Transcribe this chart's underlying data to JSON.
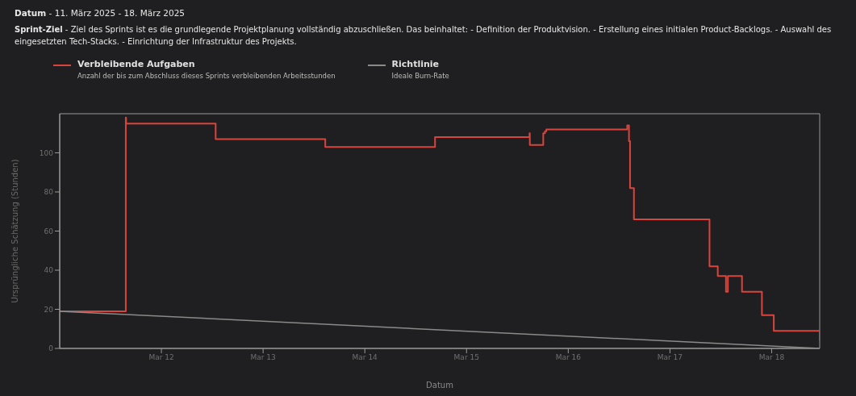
{
  "chart_data": {
    "type": "step",
    "title": "Datum - 11. März 2025 - 18. März 2025",
    "subtitle": "Sprint-Ziel - Ziel des Sprints ist es die grundlegende Projektplanung vollständig abzuschließen. Das beinhaltet: - Definition der Produktvision. - Erstellung eines initialen Product-Backlogs. - Auswahl des eingesetzten Tech-Stacks. - Einrichtung der Infrastruktur des Projekts.",
    "xlabel": "Datum",
    "ylabel": "Ursprüngliche Schätzung (Stunden)",
    "annotations": [
      "Anzahl der bis zum Abschluss dieses Sprints verbleibenden Arbeitsstunden",
      "Ideale Burn-Rate"
    ],
    "series": [
      {
        "name": "Verbleibende Aufgaben",
        "color": "#d9453d",
        "x": [
          "2025-03-11T00:00",
          "2025-03-11T15:36",
          "2025-03-11T15:40",
          "2025-03-12T12:48",
          "2025-03-13T14:40",
          "2025-03-14T16:34",
          "2025-03-15T14:52",
          "2025-03-15T14:56",
          "2025-03-15T18:06",
          "2025-03-15T18:30",
          "2025-03-15T18:50",
          "2025-03-16T13:55",
          "2025-03-16T14:20",
          "2025-03-16T14:35",
          "2025-03-16T15:30",
          "2025-03-17T09:20",
          "2025-03-17T11:17",
          "2025-03-17T13:13",
          "2025-03-17T13:40",
          "2025-03-17T17:00",
          "2025-03-17T21:42",
          "2025-03-18T00:30",
          "2025-03-18T11:20"
        ],
        "values": [
          19,
          118,
          115,
          107,
          103,
          108,
          110,
          104,
          110,
          111,
          112,
          114,
          106,
          82,
          66,
          42,
          37,
          29,
          37,
          29,
          17,
          9,
          4
        ]
      },
      {
        "name": "Richtlinie",
        "color": "#8a8a8a",
        "type": "line",
        "x": [
          "2025-03-11T00:00",
          "2025-03-18T11:20"
        ],
        "values": [
          19,
          0
        ]
      }
    ],
    "xlim": [
      "2025-03-11T00:00",
      "2025-03-18T11:20"
    ],
    "xticks": [
      {
        "value": "2025-03-12",
        "label": "Mar 12"
      },
      {
        "value": "2025-03-13",
        "label": "Mar 13"
      },
      {
        "value": "2025-03-14",
        "label": "Mar 14"
      },
      {
        "value": "2025-03-15",
        "label": "Mar 15"
      },
      {
        "value": "2025-03-16",
        "label": "Mar 16"
      },
      {
        "value": "2025-03-17",
        "label": "Mar 17"
      },
      {
        "value": "2025-03-18",
        "label": "Mar 18"
      }
    ],
    "ylim": [
      0,
      120
    ],
    "yticks": [
      0,
      20,
      40,
      60,
      80,
      100
    ],
    "grid": false,
    "legend": "top left"
  }
}
